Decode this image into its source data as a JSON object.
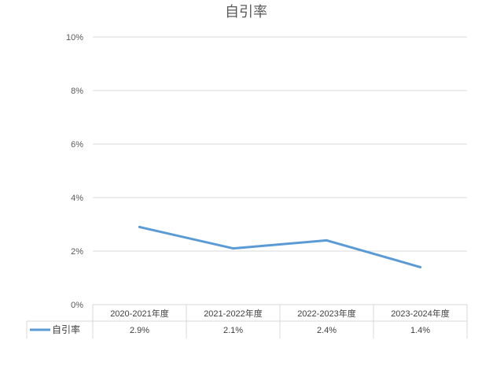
{
  "chart_data": {
    "type": "line",
    "title": "自引率",
    "categories": [
      "2020-2021年度",
      "2021-2022年度",
      "2022-2023年度",
      "2023-2024年度"
    ],
    "y_tick_labels": [
      "0%",
      "2%",
      "4%",
      "6%",
      "8%",
      "10%"
    ],
    "ylim": [
      0,
      10
    ],
    "grid": true,
    "legend": "data-table",
    "series": [
      {
        "name": "自引率",
        "values": [
          2.9,
          2.1,
          2.4,
          1.4
        ],
        "labels": [
          "2.9%",
          "2.1%",
          "2.4%",
          "1.4%"
        ],
        "color": "#5B9BD5"
      }
    ]
  }
}
